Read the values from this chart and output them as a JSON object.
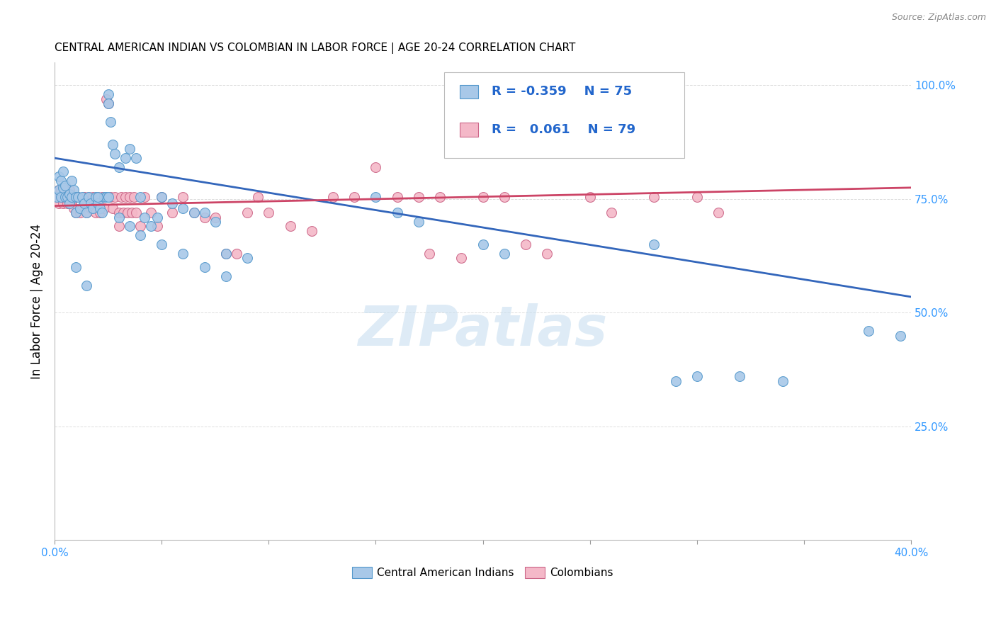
{
  "title": "CENTRAL AMERICAN INDIAN VS COLOMBIAN IN LABOR FORCE | AGE 20-24 CORRELATION CHART",
  "source": "Source: ZipAtlas.com",
  "ylabel": "In Labor Force | Age 20-24",
  "x_min": 0.0,
  "x_max": 0.4,
  "y_min": 0.0,
  "y_max": 1.05,
  "blue_color": "#a8c8e8",
  "blue_edge_color": "#5599cc",
  "pink_color": "#f4b8c8",
  "pink_edge_color": "#cc6688",
  "blue_line_color": "#3366bb",
  "pink_line_color": "#cc4466",
  "legend_R_blue": "-0.359",
  "legend_N_blue": "75",
  "legend_R_pink": "0.061",
  "legend_N_pink": "79",
  "watermark": "ZIPatlas",
  "blue_line": {
    "x0": 0.0,
    "y0": 0.84,
    "x1": 0.4,
    "y1": 0.535
  },
  "pink_line": {
    "x0": 0.0,
    "y0": 0.735,
    "x1": 0.4,
    "y1": 0.775
  },
  "blue_scatter": [
    [
      0.001,
      0.755
    ],
    [
      0.002,
      0.77
    ],
    [
      0.002,
      0.8
    ],
    [
      0.003,
      0.755
    ],
    [
      0.003,
      0.79
    ],
    [
      0.004,
      0.81
    ],
    [
      0.004,
      0.775
    ],
    [
      0.005,
      0.755
    ],
    [
      0.005,
      0.78
    ],
    [
      0.006,
      0.755
    ],
    [
      0.007,
      0.74
    ],
    [
      0.007,
      0.76
    ],
    [
      0.008,
      0.79
    ],
    [
      0.008,
      0.755
    ],
    [
      0.009,
      0.77
    ],
    [
      0.01,
      0.755
    ],
    [
      0.01,
      0.72
    ],
    [
      0.011,
      0.755
    ],
    [
      0.012,
      0.73
    ],
    [
      0.013,
      0.755
    ],
    [
      0.014,
      0.74
    ],
    [
      0.015,
      0.72
    ],
    [
      0.016,
      0.755
    ],
    [
      0.017,
      0.74
    ],
    [
      0.018,
      0.73
    ],
    [
      0.019,
      0.755
    ],
    [
      0.02,
      0.74
    ],
    [
      0.021,
      0.73
    ],
    [
      0.022,
      0.72
    ],
    [
      0.023,
      0.755
    ],
    [
      0.024,
      0.755
    ],
    [
      0.025,
      0.98
    ],
    [
      0.025,
      0.96
    ],
    [
      0.026,
      0.92
    ],
    [
      0.027,
      0.87
    ],
    [
      0.028,
      0.85
    ],
    [
      0.03,
      0.82
    ],
    [
      0.033,
      0.84
    ],
    [
      0.035,
      0.86
    ],
    [
      0.038,
      0.84
    ],
    [
      0.04,
      0.755
    ],
    [
      0.042,
      0.71
    ],
    [
      0.045,
      0.69
    ],
    [
      0.048,
      0.71
    ],
    [
      0.05,
      0.755
    ],
    [
      0.055,
      0.74
    ],
    [
      0.06,
      0.73
    ],
    [
      0.065,
      0.72
    ],
    [
      0.07,
      0.72
    ],
    [
      0.075,
      0.7
    ],
    [
      0.08,
      0.63
    ],
    [
      0.09,
      0.62
    ],
    [
      0.01,
      0.6
    ],
    [
      0.015,
      0.56
    ],
    [
      0.02,
      0.755
    ],
    [
      0.025,
      0.755
    ],
    [
      0.03,
      0.71
    ],
    [
      0.035,
      0.69
    ],
    [
      0.04,
      0.67
    ],
    [
      0.05,
      0.65
    ],
    [
      0.06,
      0.63
    ],
    [
      0.07,
      0.6
    ],
    [
      0.08,
      0.58
    ],
    [
      0.15,
      0.755
    ],
    [
      0.16,
      0.72
    ],
    [
      0.17,
      0.7
    ],
    [
      0.2,
      0.65
    ],
    [
      0.21,
      0.63
    ],
    [
      0.28,
      0.65
    ],
    [
      0.29,
      0.35
    ],
    [
      0.3,
      0.36
    ],
    [
      0.32,
      0.36
    ],
    [
      0.34,
      0.35
    ],
    [
      0.38,
      0.46
    ],
    [
      0.395,
      0.45
    ]
  ],
  "pink_scatter": [
    [
      0.001,
      0.755
    ],
    [
      0.002,
      0.77
    ],
    [
      0.002,
      0.74
    ],
    [
      0.003,
      0.77
    ],
    [
      0.003,
      0.755
    ],
    [
      0.004,
      0.74
    ],
    [
      0.004,
      0.755
    ],
    [
      0.005,
      0.77
    ],
    [
      0.005,
      0.755
    ],
    [
      0.006,
      0.74
    ],
    [
      0.007,
      0.77
    ],
    [
      0.007,
      0.755
    ],
    [
      0.008,
      0.74
    ],
    [
      0.008,
      0.755
    ],
    [
      0.009,
      0.73
    ],
    [
      0.01,
      0.755
    ],
    [
      0.01,
      0.72
    ],
    [
      0.011,
      0.755
    ],
    [
      0.012,
      0.72
    ],
    [
      0.013,
      0.73
    ],
    [
      0.014,
      0.755
    ],
    [
      0.015,
      0.72
    ],
    [
      0.016,
      0.755
    ],
    [
      0.017,
      0.73
    ],
    [
      0.018,
      0.755
    ],
    [
      0.019,
      0.72
    ],
    [
      0.02,
      0.755
    ],
    [
      0.021,
      0.72
    ],
    [
      0.022,
      0.755
    ],
    [
      0.023,
      0.73
    ],
    [
      0.024,
      0.97
    ],
    [
      0.025,
      0.96
    ],
    [
      0.026,
      0.755
    ],
    [
      0.027,
      0.73
    ],
    [
      0.028,
      0.755
    ],
    [
      0.03,
      0.72
    ],
    [
      0.03,
      0.69
    ],
    [
      0.031,
      0.755
    ],
    [
      0.032,
      0.72
    ],
    [
      0.033,
      0.755
    ],
    [
      0.034,
      0.72
    ],
    [
      0.035,
      0.755
    ],
    [
      0.036,
      0.72
    ],
    [
      0.037,
      0.755
    ],
    [
      0.038,
      0.72
    ],
    [
      0.04,
      0.69
    ],
    [
      0.042,
      0.755
    ],
    [
      0.045,
      0.72
    ],
    [
      0.048,
      0.69
    ],
    [
      0.05,
      0.755
    ],
    [
      0.055,
      0.72
    ],
    [
      0.06,
      0.755
    ],
    [
      0.065,
      0.72
    ],
    [
      0.07,
      0.71
    ],
    [
      0.075,
      0.71
    ],
    [
      0.08,
      0.63
    ],
    [
      0.085,
      0.63
    ],
    [
      0.09,
      0.72
    ],
    [
      0.095,
      0.755
    ],
    [
      0.1,
      0.72
    ],
    [
      0.11,
      0.69
    ],
    [
      0.12,
      0.68
    ],
    [
      0.13,
      0.755
    ],
    [
      0.14,
      0.755
    ],
    [
      0.15,
      0.82
    ],
    [
      0.16,
      0.755
    ],
    [
      0.17,
      0.755
    ],
    [
      0.175,
      0.63
    ],
    [
      0.18,
      0.755
    ],
    [
      0.19,
      0.62
    ],
    [
      0.2,
      0.755
    ],
    [
      0.21,
      0.755
    ],
    [
      0.22,
      0.65
    ],
    [
      0.23,
      0.63
    ],
    [
      0.25,
      0.755
    ],
    [
      0.26,
      0.72
    ],
    [
      0.28,
      0.755
    ],
    [
      0.3,
      0.755
    ],
    [
      0.31,
      0.72
    ]
  ]
}
